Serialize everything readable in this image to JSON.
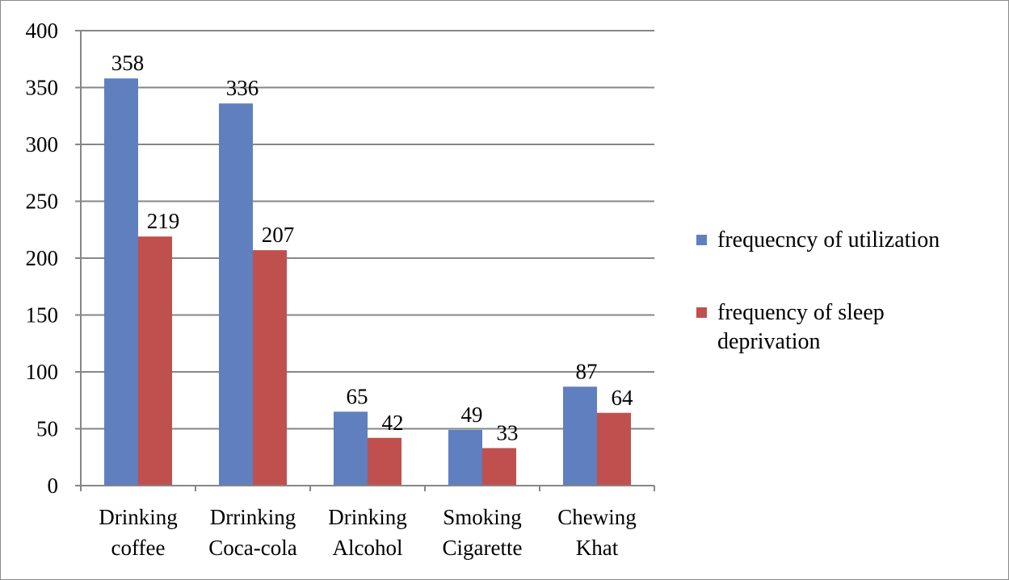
{
  "chart_data": {
    "type": "bar",
    "categories": [
      [
        "Drinking",
        "coffee"
      ],
      [
        "Drrinking",
        "Coca-cola"
      ],
      [
        "Drinking",
        "Alcohol"
      ],
      [
        "Smoking",
        "Cigarette"
      ],
      [
        "Chewing",
        "Khat"
      ]
    ],
    "series": [
      {
        "name": "frequecncy of utilization",
        "color": "#5f7fbf",
        "values": [
          358,
          336,
          65,
          49,
          87
        ]
      },
      {
        "name": "frequency of sleep deprivation",
        "color": "#c0504d",
        "values": [
          219,
          207,
          42,
          33,
          64
        ]
      }
    ],
    "data_labels": [
      [
        "358",
        "336",
        "65",
        "49",
        "87"
      ],
      [
        "219",
        "207",
        "42",
        "33",
        "64"
      ]
    ],
    "yticks": [
      "0",
      "50",
      "100",
      "150",
      "200",
      "250",
      "300",
      "350",
      "400"
    ],
    "ylim": [
      0,
      400
    ],
    "grid": true,
    "legend_position": "right"
  }
}
